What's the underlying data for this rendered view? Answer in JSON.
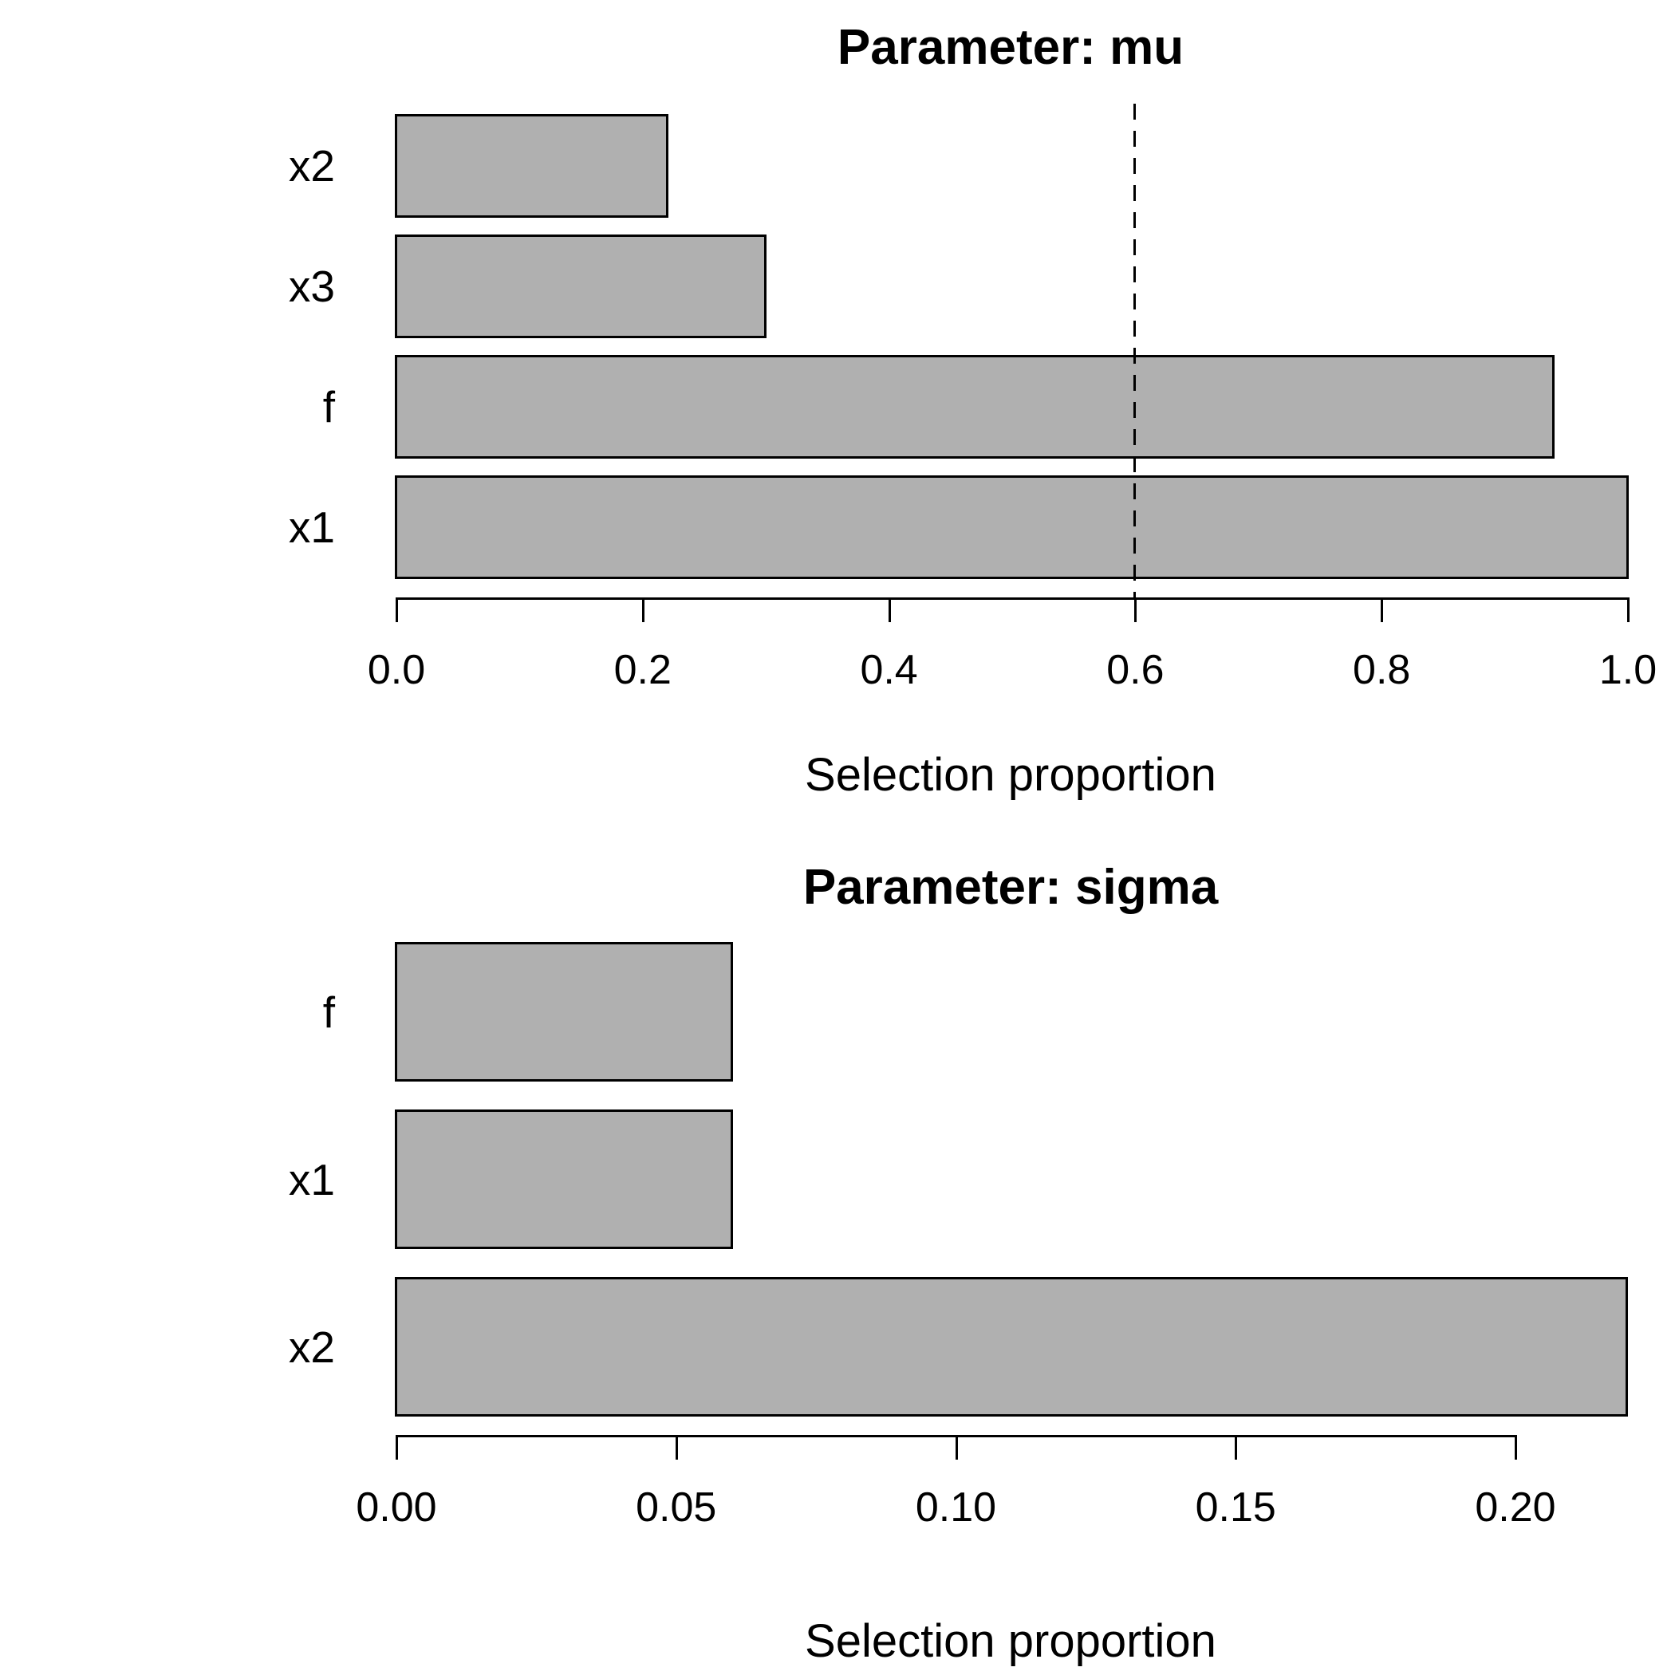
{
  "page": {
    "background": "#ffffff",
    "bar_fill_color": "#b0b0b0",
    "bar_border_color": "#000000",
    "text_color": "#000000"
  },
  "chart_data": [
    {
      "type": "bar",
      "orientation": "horizontal",
      "title": "Parameter: mu",
      "xlabel": "Selection proportion",
      "categories_top_to_bottom": [
        "x2",
        "x3",
        "f",
        "x1"
      ],
      "values": [
        0.22,
        0.3,
        0.94,
        1.0
      ],
      "xlim": [
        0.0,
        1.0
      ],
      "xtick_values": [
        0.0,
        0.2,
        0.4,
        0.6,
        0.8,
        1.0
      ],
      "xtick_labels": [
        "0.0",
        "0.2",
        "0.4",
        "0.6",
        "0.8",
        "1.0"
      ],
      "threshold_line": {
        "value": 0.6,
        "style": "dashed",
        "color": "#000000"
      },
      "grid": false,
      "legend": false
    },
    {
      "type": "bar",
      "orientation": "horizontal",
      "title": "Parameter: sigma",
      "xlabel": "Selection proportion",
      "categories_top_to_bottom": [
        "f",
        "x1",
        "x2"
      ],
      "values": [
        0.06,
        0.06,
        0.22
      ],
      "xlim": [
        0.0,
        0.22
      ],
      "xtick_values": [
        0.0,
        0.05,
        0.1,
        0.15,
        0.2
      ],
      "xtick_labels": [
        "0.00",
        "0.05",
        "0.10",
        "0.15",
        "0.20"
      ],
      "threshold_line": null,
      "grid": false,
      "legend": false
    }
  ]
}
